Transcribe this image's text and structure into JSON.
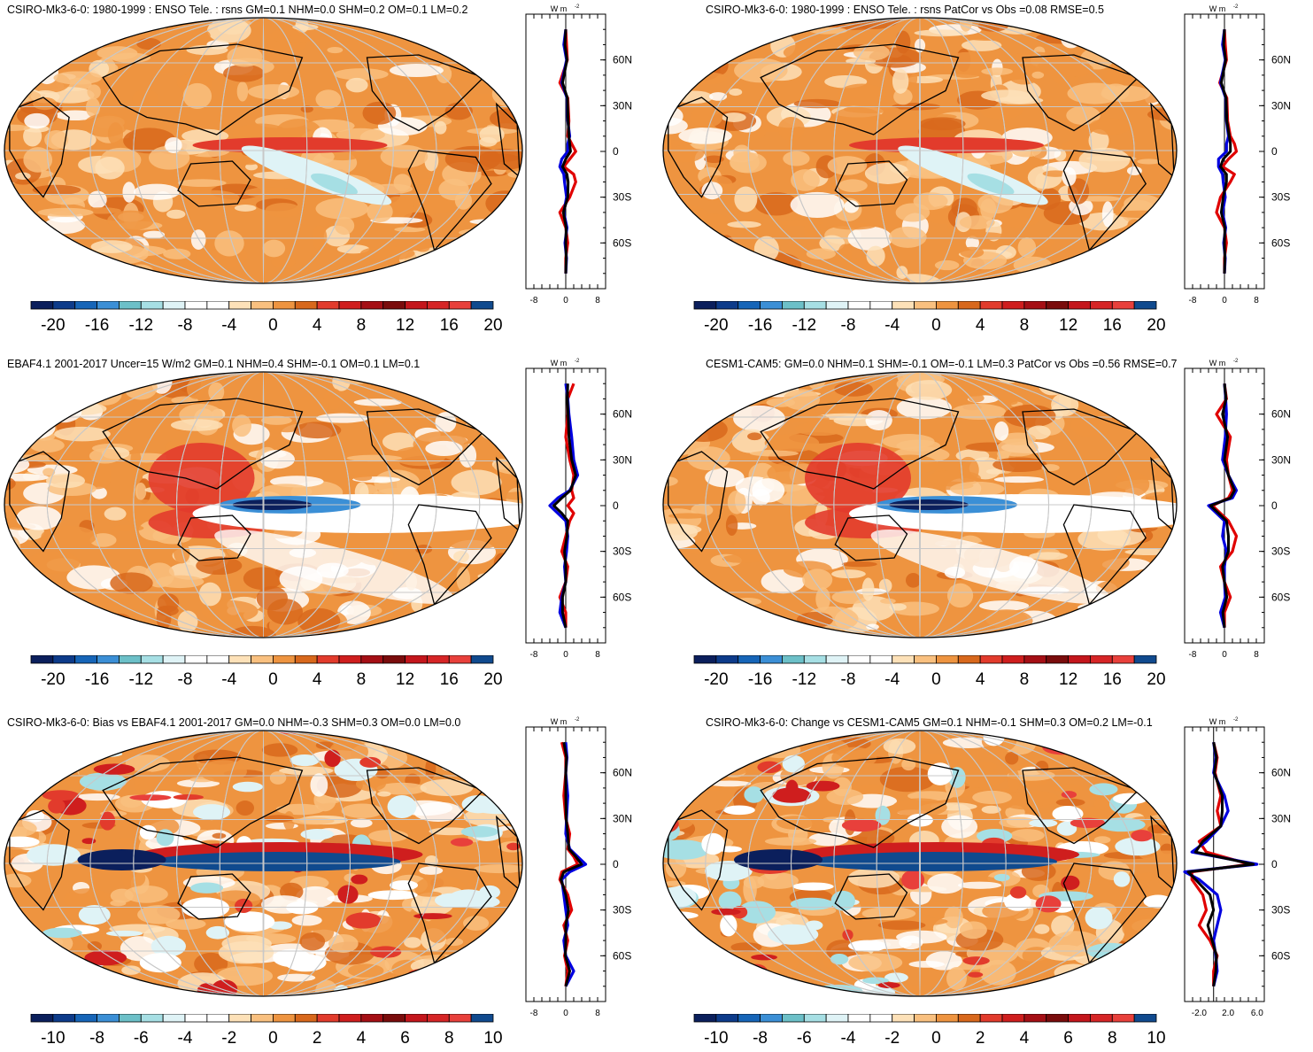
{
  "colors": {
    "palette_21": [
      "#0b1f5c",
      "#0d3b8a",
      "#1665b8",
      "#3b8fd6",
      "#6cc0c8",
      "#a6dfe4",
      "#dff3f6",
      "#ffffff",
      "#ffffff",
      "#fde1b8",
      "#f9c07f",
      "#ee9440",
      "#d8681c",
      "#e23b2c",
      "#cf1e1e",
      "#a50f15",
      "#7a0c0c",
      "#c4161c",
      "#d62526",
      "#e8403b",
      "#104a8e"
    ],
    "obs_line": "#e00000",
    "model_line": "#0000e0",
    "mean_line": "#000000"
  },
  "units_label": "W m",
  "units_sup": "-2",
  "lat_ticks": [
    "60N",
    "30N",
    "0",
    "30S",
    "60S"
  ],
  "panels": [
    {
      "id": "p1",
      "title": "CSIRO-Mk3-6-0: 1980-1999 : ENSO Tele. : rsns GM=0.1 NHM=0.0 SHM=0.2 OM=0.1 LM=0.2",
      "cbar_labels": [
        "-20",
        "-16",
        "-12",
        "-8",
        "-4",
        "0",
        "4",
        "8",
        "12",
        "16",
        "20"
      ],
      "prof_xticks": [
        "-8",
        "0",
        "8"
      ],
      "chart_data": {
        "type": "line",
        "title": "CSIRO-Mk3-6-0: 1980-1999 : ENSO Tele. : rsns",
        "xlim": [
          -10,
          10
        ],
        "ylim": [
          -90,
          90
        ],
        "series": [
          {
            "name": "obs",
            "lat": [
              80,
              70,
              60,
              45,
              35,
              20,
              10,
              5,
              0,
              -5,
              -10,
              -15,
              -20,
              -30,
              -40,
              -50,
              -60,
              -70,
              -80
            ],
            "values": [
              0,
              0.2,
              0.4,
              -1.5,
              0.5,
              0.8,
              0.5,
              1.5,
              2.5,
              1,
              -0.5,
              2,
              2.5,
              1,
              -1.5,
              0,
              0.5,
              0,
              0
            ]
          },
          {
            "name": "model",
            "lat": [
              80,
              70,
              60,
              45,
              35,
              20,
              10,
              5,
              0,
              -5,
              -10,
              -15,
              -20,
              -30,
              -40,
              -50,
              -60,
              -70,
              -80
            ],
            "values": [
              0,
              -0.5,
              0.2,
              -1,
              0.3,
              0.5,
              1,
              0.5,
              0.5,
              -1,
              -1.5,
              -0.5,
              -0.3,
              0.2,
              -0.5,
              0.3,
              -0.2,
              0.2,
              0
            ]
          },
          {
            "name": "mean",
            "lat": [
              80,
              70,
              60,
              45,
              35,
              20,
              10,
              5,
              0,
              -5,
              -10,
              -15,
              -20,
              -30,
              -40,
              -50,
              -60,
              -70,
              -80
            ],
            "values": [
              0,
              -0.2,
              0.3,
              -0.8,
              0.4,
              0.6,
              0.8,
              1,
              1.2,
              0,
              -0.8,
              0.3,
              0.6,
              0.5,
              -0.6,
              0.1,
              0,
              0.1,
              0
            ]
          }
        ]
      }
    },
    {
      "id": "p2",
      "title": "CSIRO-Mk3-6-0: 1980-1999 : ENSO Tele. : rsns PatCor vs Obs =0.08 RMSE=0.5",
      "cbar_labels": [
        "-20",
        "-16",
        "-12",
        "-8",
        "-4",
        "0",
        "4",
        "8",
        "12",
        "16",
        "20"
      ],
      "prof_xticks": [
        "-8",
        "0",
        "8"
      ],
      "chart_data": {
        "type": "line",
        "title": "CSIRO-Mk3-6-0: 1980-1999 : ENSO Tele. : rsns PatCor vs Obs",
        "xlim": [
          -10,
          10
        ],
        "ylim": [
          -90,
          90
        ],
        "series": [
          {
            "name": "obs",
            "lat": [
              80,
              70,
              60,
              45,
              35,
              20,
              10,
              5,
              0,
              -5,
              -10,
              -15,
              -20,
              -30,
              -40,
              -50,
              -60,
              -70,
              -80
            ],
            "values": [
              0,
              0.2,
              0.5,
              -1.2,
              0.6,
              0.8,
              1.5,
              2.5,
              3,
              1,
              -0.5,
              2.5,
              1.5,
              -1,
              -2,
              0,
              0.5,
              0,
              0
            ]
          },
          {
            "name": "model",
            "lat": [
              80,
              70,
              60,
              45,
              35,
              20,
              10,
              5,
              0,
              -5,
              -10,
              -15,
              -20,
              -30,
              -40,
              -50,
              -60,
              -70,
              -80
            ],
            "values": [
              0,
              -0.5,
              0.2,
              -1,
              0.3,
              0.5,
              1,
              0.5,
              0.5,
              -1.5,
              -1.5,
              -0.5,
              -0.3,
              0.2,
              -0.5,
              0.3,
              -0.2,
              0.2,
              0
            ]
          },
          {
            "name": "mean",
            "lat": [
              80,
              70,
              60,
              45,
              35,
              20,
              10,
              5,
              0,
              -5,
              -10,
              -15,
              -20,
              -30,
              -40,
              -50,
              -60,
              -70,
              -80
            ],
            "values": [
              0,
              -0.2,
              0.3,
              -0.8,
              0.4,
              0.6,
              1.2,
              1.5,
              1.5,
              -0.3,
              -1,
              0.5,
              0.5,
              -0.3,
              -0.8,
              0.1,
              0,
              0.1,
              0
            ]
          }
        ]
      }
    },
    {
      "id": "p3",
      "title": "EBAF4.1 2001-2017 Uncer=15 W/m2 GM=0.1 NHM=0.4 SHM=-0.1 OM=0.1 LM=0.1",
      "cbar_labels": [
        "-20",
        "-16",
        "-12",
        "-8",
        "-4",
        "0",
        "4",
        "8",
        "12",
        "16",
        "20"
      ],
      "prof_xticks": [
        "-8",
        "0",
        "8"
      ],
      "chart_data": {
        "type": "line",
        "title": "EBAF4.1 2001-2017",
        "xlim": [
          -10,
          10
        ],
        "ylim": [
          -90,
          90
        ],
        "series": [
          {
            "name": "obs",
            "lat": [
              80,
              70,
              60,
              45,
              30,
              20,
              10,
              5,
              0,
              -5,
              -10,
              -20,
              -30,
              -40,
              -50,
              -60,
              -70,
              -80
            ],
            "values": [
              2,
              0.5,
              0.5,
              0,
              1,
              2,
              1.5,
              2,
              0.5,
              2,
              1,
              0,
              -1,
              0.5,
              0,
              -1.5,
              0,
              0
            ]
          },
          {
            "name": "model",
            "lat": [
              80,
              70,
              60,
              45,
              30,
              20,
              10,
              5,
              0,
              -5,
              -10,
              -20,
              -30,
              -40,
              -50,
              -60,
              -70,
              -80
            ],
            "values": [
              0,
              0.5,
              0.8,
              1.5,
              2,
              3,
              1,
              -2,
              -4,
              -2,
              0,
              0.5,
              0.2,
              -0.3,
              0,
              -1,
              -1.5,
              0
            ]
          },
          {
            "name": "mean",
            "lat": [
              80,
              70,
              60,
              45,
              30,
              20,
              10,
              5,
              0,
              -5,
              -10,
              -20,
              -30,
              -40,
              -50,
              -60,
              -70,
              -80
            ],
            "values": [
              0.5,
              0.4,
              0.6,
              0.8,
              1.5,
              2.5,
              1.2,
              -1,
              -3,
              -1,
              0.5,
              0.3,
              -0.3,
              0,
              0,
              -0.8,
              -0.8,
              0
            ]
          }
        ]
      }
    },
    {
      "id": "p4",
      "title": "CESM1-CAM5: GM=0.0 NHM=0.1 SHM=-0.1 OM=-0.1 LM=0.3 PatCor vs Obs =0.56 RMSE=0.7",
      "cbar_labels": [
        "-20",
        "-16",
        "-12",
        "-8",
        "-4",
        "0",
        "4",
        "8",
        "12",
        "16",
        "20"
      ],
      "prof_xticks": [
        "-8",
        "0",
        "8"
      ],
      "chart_data": {
        "type": "line",
        "title": "CESM1-CAM5 PatCor vs Obs",
        "xlim": [
          -10,
          10
        ],
        "ylim": [
          -90,
          90
        ],
        "series": [
          {
            "name": "obs",
            "lat": [
              80,
              70,
              60,
              45,
              30,
              20,
              10,
              5,
              0,
              -5,
              -10,
              -20,
              -30,
              -40,
              -50,
              -60,
              -70,
              -80
            ],
            "values": [
              0,
              0.5,
              -2,
              1.5,
              0.5,
              1,
              2,
              1,
              -3,
              -1,
              1,
              3,
              2,
              -1,
              0,
              1.5,
              0,
              0
            ]
          },
          {
            "name": "model",
            "lat": [
              80,
              70,
              60,
              45,
              30,
              20,
              10,
              5,
              0,
              -5,
              -10,
              -20,
              -30,
              -40,
              -50,
              -60,
              -70,
              -80
            ],
            "values": [
              0,
              0.3,
              0.5,
              0.2,
              -0.5,
              1,
              3,
              2,
              -4,
              -2,
              0,
              -0.5,
              0.5,
              0,
              0,
              0.2,
              -1,
              0
            ]
          },
          {
            "name": "mean",
            "lat": [
              80,
              70,
              60,
              45,
              30,
              20,
              10,
              5,
              0,
              -5,
              -10,
              -20,
              -30,
              -40,
              -50,
              -60,
              -70,
              -80
            ],
            "values": [
              0,
              0.4,
              -0.5,
              0.8,
              0,
              1,
              2.5,
              1.5,
              -3.5,
              -1.5,
              0.5,
              1,
              1,
              -0.5,
              0,
              0.6,
              -0.4,
              0
            ]
          }
        ]
      }
    },
    {
      "id": "p5",
      "title": "CSIRO-Mk3-6-0: Bias vs EBAF4.1 2001-2017 GM=0.0 NHM=-0.3 SHM=0.3 OM=0.0 LM=0.0",
      "cbar_labels": [
        "-10",
        "-8",
        "-6",
        "-4",
        "-2",
        "0",
        "2",
        "4",
        "6",
        "8",
        "10"
      ],
      "prof_xticks": [
        "-8",
        "0",
        "8"
      ],
      "chart_data": {
        "type": "line",
        "title": "CSIRO-Mk3-6-0: Bias vs EBAF4.1",
        "xlim": [
          -10,
          10
        ],
        "ylim": [
          -90,
          90
        ],
        "series": [
          {
            "name": "obs",
            "lat": [
              80,
              70,
              60,
              45,
              30,
              20,
              10,
              5,
              0,
              -5,
              -10,
              -20,
              -30,
              -40,
              -50,
              -60,
              -70,
              -80
            ],
            "values": [
              -1,
              0,
              0,
              -0.5,
              0,
              1,
              0.5,
              2,
              3,
              -1,
              -1.5,
              0.5,
              1.5,
              -0.5,
              0.5,
              -0.3,
              0.5,
              0
            ]
          },
          {
            "name": "model",
            "lat": [
              80,
              70,
              60,
              45,
              30,
              20,
              10,
              5,
              0,
              -5,
              -10,
              -20,
              -30,
              -40,
              -50,
              -60,
              -70,
              -80
            ],
            "values": [
              0,
              0.3,
              0,
              0.5,
              0.2,
              0,
              1,
              3,
              5,
              1,
              -1,
              -0.5,
              0,
              0.5,
              -0.5,
              0,
              2,
              0
            ]
          },
          {
            "name": "mean",
            "lat": [
              80,
              70,
              60,
              45,
              30,
              20,
              10,
              5,
              0,
              -5,
              -10,
              -20,
              -30,
              -40,
              -50,
              -60,
              -70,
              -80
            ],
            "values": [
              -0.5,
              0.2,
              0,
              0,
              0.1,
              0.5,
              0.8,
              2.5,
              4,
              -0.5,
              -1.2,
              0,
              0.7,
              0,
              0,
              -0.1,
              1,
              0
            ]
          }
        ]
      }
    },
    {
      "id": "p6",
      "title": "CSIRO-Mk3-6-0: Change vs CESM1-CAM5 GM=0.1 NHM=-0.1 SHM=0.3 OM=0.2 LM=-0.1",
      "cbar_labels": [
        "-10",
        "-8",
        "-6",
        "-4",
        "-2",
        "0",
        "2",
        "4",
        "6",
        "8",
        "10"
      ],
      "prof_xticks": [
        "-2.0",
        "2.0",
        "6.0"
      ],
      "chart_data": {
        "type": "line",
        "title": "CSIRO-Mk3-6-0: Change vs CESM1-CAM5",
        "xlim": [
          -4,
          7
        ],
        "ylim": [
          -90,
          90
        ],
        "series": [
          {
            "name": "obs",
            "lat": [
              80,
              70,
              60,
              45,
              35,
              25,
              15,
              8,
              0,
              -5,
              -10,
              -20,
              -30,
              -40,
              -50,
              -60,
              -70,
              -80
            ],
            "values": [
              0,
              0.5,
              0.2,
              1,
              0.5,
              1,
              -2,
              -1,
              5,
              -3,
              -3,
              -1.5,
              -1,
              -2,
              -0.5,
              0.5,
              0,
              0
            ]
          },
          {
            "name": "model",
            "lat": [
              80,
              70,
              60,
              45,
              35,
              25,
              15,
              8,
              0,
              -5,
              -10,
              -20,
              -30,
              -40,
              -50,
              -60,
              -70,
              -80
            ],
            "values": [
              0,
              0.3,
              0,
              1.5,
              2,
              1,
              -1,
              -3,
              6,
              -4,
              -2,
              0.5,
              1,
              0.5,
              0,
              0.3,
              0.5,
              0
            ]
          },
          {
            "name": "mean",
            "lat": [
              80,
              70,
              60,
              45,
              35,
              25,
              15,
              8,
              0,
              -5,
              -10,
              -20,
              -30,
              -40,
              -50,
              -60,
              -70,
              -80
            ],
            "values": [
              0,
              0.4,
              0.1,
              1.2,
              1.2,
              1,
              -1.5,
              -2.5,
              5.5,
              -3.5,
              -2.5,
              -0.5,
              0,
              -0.8,
              -0.2,
              0.4,
              0.3,
              0
            ]
          }
        ]
      }
    }
  ]
}
